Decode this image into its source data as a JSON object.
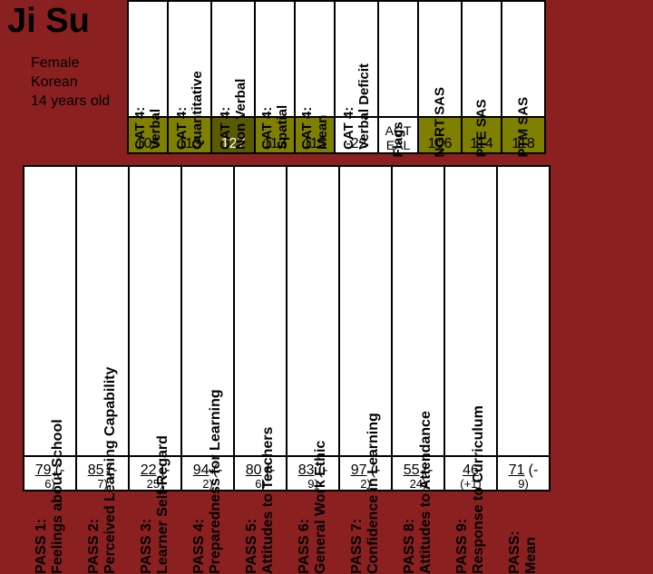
{
  "student": {
    "name": "Ji Su",
    "gender": "Female",
    "ethnicity": "Korean",
    "age": "14 years old"
  },
  "top_headers": [
    "CAT 4:\nVerbal",
    "CAT 4:\nQuantitative",
    "CAT 4:\nNon Verbal",
    "CAT 4:\nSpatial",
    "CAT 4:\nMean",
    "CAT 4:\nVerbal Deficit",
    "Flags",
    "NGRT SAS",
    "PTE SAS",
    "PTM SAS"
  ],
  "top_values": [
    "105",
    "113",
    "127",
    "113",
    "115",
    "-22",
    "AGT\nEAL",
    "106",
    "114",
    "118"
  ],
  "top_cell_bg": [
    "olive",
    "olive",
    "dark-olive",
    "olive",
    "olive",
    "",
    "",
    "olive",
    "olive",
    "olive"
  ],
  "bottom_headers": [
    "PASS 1:\nFeelings about School",
    "PASS 2:\nPerceived Learning Capability",
    "PASS 3:\nLearner Self-Regard",
    "PASS 4:\nPreparedness for Learning",
    "PASS 5:\nAttitudes to Teachers",
    "PASS 6:\nGeneral Work Ethic",
    "PASS 7:\nConfidence in Learning",
    "PASS 8:\nAttitudes to Attendance",
    "PASS 9:\nResponse to Curriculum",
    "PASS:\nMean"
  ],
  "bottom_cells": [
    {
      "main": "79",
      "paren": "(-",
      "sub": "6)"
    },
    {
      "main": "85",
      "paren": "(-",
      "sub": "7)"
    },
    {
      "main": "22",
      "paren": "(-",
      "sub": "25)"
    },
    {
      "main": "94",
      "paren": "(-",
      "sub": "2)"
    },
    {
      "main": "80",
      "paren": "(-",
      "sub": "6)"
    },
    {
      "main": "83",
      "paren": "(-",
      "sub": "9)"
    },
    {
      "main": "97",
      "paren": "(-",
      "sub": "2)"
    },
    {
      "main": "55",
      "paren": "(-",
      "sub": "24)"
    },
    {
      "main": "46",
      "paren": "",
      "sub": "(+1)"
    },
    {
      "main": "71",
      "paren": "(-",
      "sub": "9)"
    }
  ],
  "colors": {
    "page_bg": "#8b2020",
    "cell_bg": "#ffffff",
    "olive": "#808000",
    "dark_olive": "#5a5a00",
    "border": "#000000"
  }
}
